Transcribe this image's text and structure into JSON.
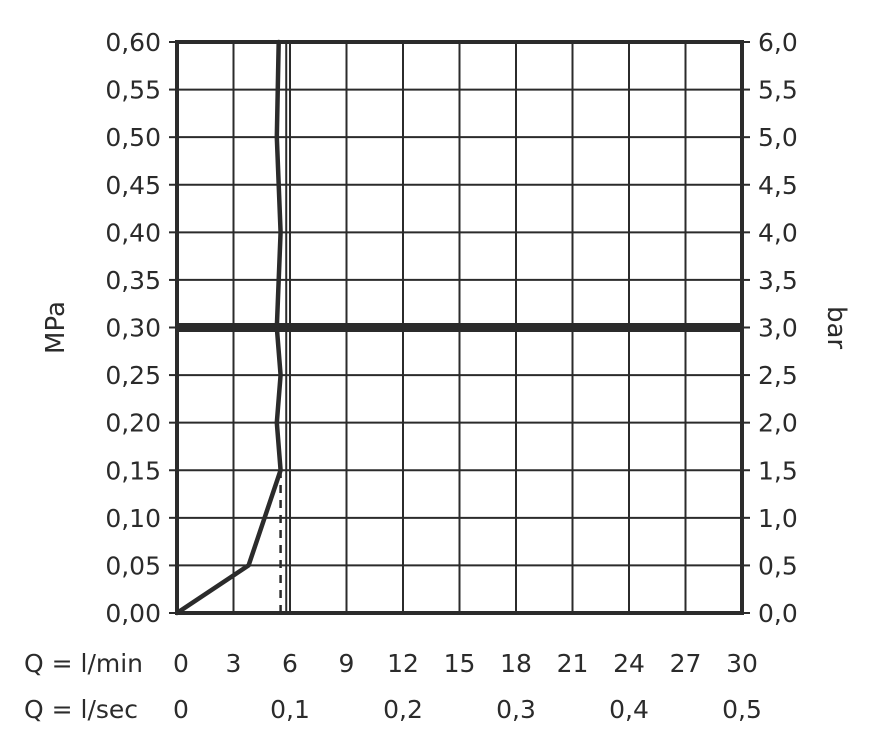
{
  "chart_data": {
    "type": "line",
    "title": "",
    "ylabel_left": "MPa",
    "ylabel_right": "bar",
    "xlabel_rows": [
      {
        "label": "Q = l/min",
        "ticks": [
          "0",
          "3",
          "6",
          "9",
          "12",
          "15",
          "18",
          "21",
          "24",
          "27",
          "30"
        ],
        "tick_values": [
          0,
          3,
          6,
          9,
          12,
          15,
          18,
          21,
          24,
          27,
          30
        ]
      },
      {
        "label": "Q = l/sec",
        "ticks": [
          "0",
          "0,1",
          "0,2",
          "0,3",
          "0,4",
          "0,5"
        ],
        "tick_values": [
          0,
          6,
          12,
          18,
          24,
          30
        ]
      }
    ],
    "xlim": [
      0,
      30
    ],
    "ylim": [
      0,
      0.6
    ],
    "y_left_ticks": [
      "0,00",
      "0,05",
      "0,10",
      "0,15",
      "0,20",
      "0,25",
      "0,30",
      "0,35",
      "0,40",
      "0,45",
      "0,50",
      "0,55",
      "0,60"
    ],
    "y_right_ticks": [
      "0,0",
      "0,5",
      "1,0",
      "1,5",
      "2,0",
      "2,5",
      "3,0",
      "3,5",
      "4,0",
      "4,5",
      "5,0",
      "5,5",
      "6,0"
    ],
    "y_tick_values": [
      0,
      0.05,
      0.1,
      0.15,
      0.2,
      0.25,
      0.3,
      0.35,
      0.4,
      0.45,
      0.5,
      0.55,
      0.6
    ],
    "grid": true,
    "series": [
      {
        "x": [
          0,
          3.8,
          5.5,
          5.3,
          5.5,
          5.3,
          5.5,
          5.3,
          5.4
        ],
        "y": [
          0,
          0.05,
          0.15,
          0.2,
          0.25,
          0.3,
          0.4,
          0.5,
          0.6
        ]
      }
    ],
    "reference_lines": [
      {
        "orientation": "horizontal",
        "y": 0.3,
        "style": "thick"
      },
      {
        "orientation": "vertical",
        "x": 5.5,
        "y_range": [
          0,
          0.15
        ],
        "style": "dashed"
      },
      {
        "orientation": "vertical",
        "x": 5.8,
        "y_range": [
          0,
          0.6
        ],
        "style": "thin"
      }
    ],
    "colors": {
      "line": "#2b2b2b",
      "grid": "#2b2b2b",
      "text": "#2b2b2b"
    }
  }
}
